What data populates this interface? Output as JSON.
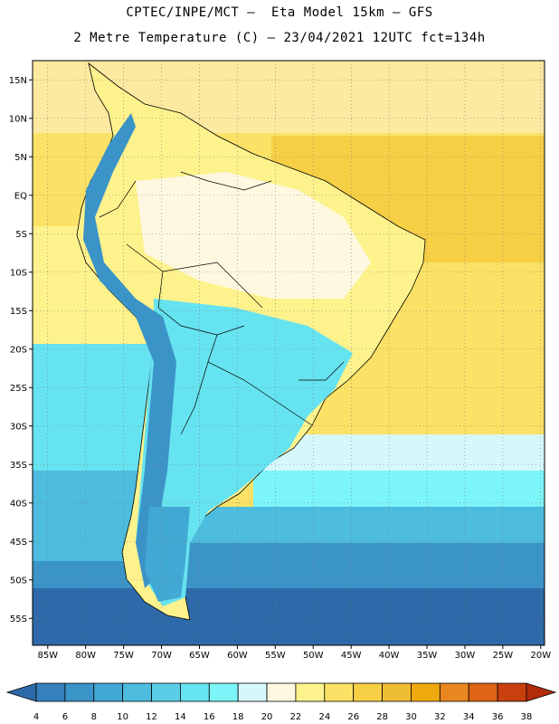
{
  "title_line1": "CPTEC/INPE/MCT –  Eta Model 15km – GFS",
  "title_line2": "2 Metre Temperature (C) – 23/04/2021 12UTC fct=134h",
  "lat_labels": [
    "15N",
    "10N",
    "5N",
    "EQ",
    "5S",
    "10S",
    "15S",
    "20S",
    "25S",
    "30S",
    "35S",
    "40S",
    "45S",
    "50S",
    "55S"
  ],
  "lon_labels": [
    "85W",
    "80W",
    "75W",
    "70W",
    "65W",
    "60W",
    "55W",
    "50W",
    "45W",
    "40W",
    "35W",
    "30W",
    "25W",
    "20W"
  ],
  "colorbar": {
    "values": [
      "4",
      "6",
      "8",
      "10",
      "12",
      "14",
      "16",
      "18",
      "20",
      "22",
      "24",
      "26",
      "28",
      "30",
      "32",
      "34",
      "36",
      "38"
    ],
    "colors": [
      "#2e6aa9",
      "#3581bb",
      "#3b94c8",
      "#42a8d4",
      "#4dbcde",
      "#5acee7",
      "#66e3f0",
      "#7cf5f8",
      "#d6f8fc",
      "#fef8e0",
      "#fdf28c",
      "#fbe266",
      "#f7cf45",
      "#efbd33",
      "#eea90d",
      "#e88720",
      "#dc6414",
      "#c9400e",
      "#b12c0a"
    ]
  }
}
